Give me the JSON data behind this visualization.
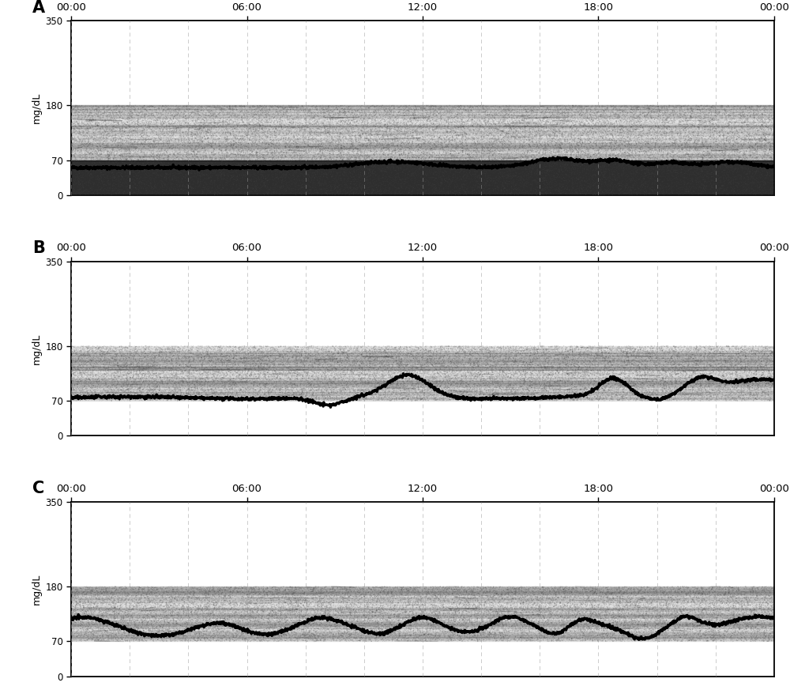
{
  "panels": [
    "A",
    "B",
    "C"
  ],
  "time_labels": [
    "00:00",
    "06:00",
    "12:00",
    "18:00",
    "00:00"
  ],
  "time_ticks": [
    0,
    6,
    12,
    18,
    24
  ],
  "yticks": [
    0,
    70,
    180,
    350
  ],
  "ylim": [
    0,
    350
  ],
  "xlim": [
    0,
    24
  ],
  "ylabel": "mg/dL",
  "shaded_band_low": 70,
  "shaded_band_high": 180,
  "background_color": "#ffffff",
  "line_color": "#000000",
  "grid_color": "#999999",
  "band_fill_color": "#d8d8d8",
  "dark_fill_color": "#1a1a1a"
}
